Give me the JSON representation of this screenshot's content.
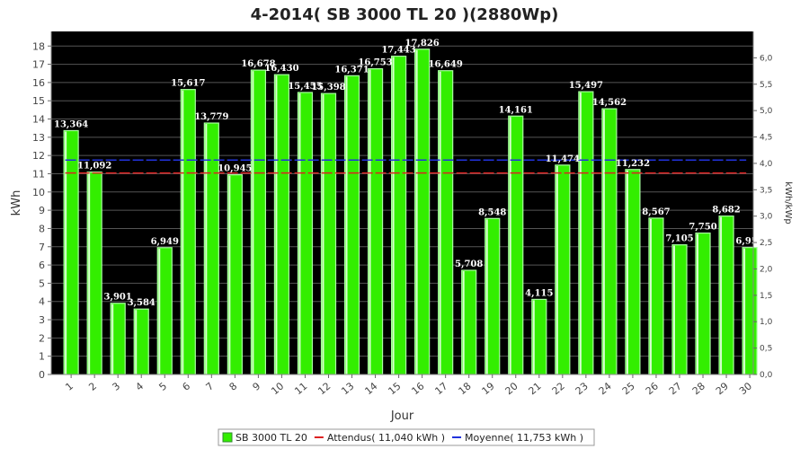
{
  "chart_data": {
    "type": "bar",
    "title": "4-2014( SB 3000 TL 20 )(2880Wp)",
    "xlabel": "Jour",
    "ylabel": "kWh",
    "y2label": "kWh/kWp",
    "ylim": [
      0,
      18.8
    ],
    "y2lim": [
      0,
      6.5
    ],
    "yticks": [
      "0",
      "1",
      "2",
      "3",
      "4",
      "5",
      "6",
      "7",
      "8",
      "9",
      "10",
      "11",
      "12",
      "13",
      "14",
      "15",
      "16",
      "17",
      "18"
    ],
    "y2ticks": [
      "0,0",
      "0,5",
      "1,0",
      "1,5",
      "2,0",
      "2,5",
      "3,0",
      "3,5",
      "4,0",
      "4,5",
      "5,0",
      "5,5",
      "6,0"
    ],
    "categories": [
      "1",
      "2",
      "3",
      "4",
      "5",
      "6",
      "7",
      "8",
      "9",
      "10",
      "11",
      "12",
      "13",
      "14",
      "15",
      "16",
      "17",
      "18",
      "19",
      "20",
      "21",
      "22",
      "23",
      "24",
      "25",
      "26",
      "27",
      "28",
      "29",
      "30"
    ],
    "series": [
      {
        "name": "SB 3000 TL 20",
        "color": "#33ee00",
        "values": [
          13.364,
          11.092,
          3.901,
          3.584,
          6.949,
          15.617,
          13.779,
          10.945,
          16.678,
          16.43,
          15.455,
          15.398,
          16.371,
          16.753,
          17.443,
          17.826,
          16.649,
          5.708,
          8.548,
          14.161,
          4.115,
          11.474,
          15.497,
          14.562,
          11.232,
          8.567,
          7.105,
          7.75,
          8.682,
          6.956
        ]
      }
    ],
    "data_labels": [
      "13,364",
      "11,092",
      "3,901",
      "3,584",
      "6,949",
      "15,617",
      "13,779",
      "10,945",
      "16,678",
      "16,430",
      "15,455",
      "15,398",
      "16,371",
      "16,753",
      "17,443",
      "17,826",
      "16,649",
      "5,708",
      "8,548",
      "14,161",
      "4,115",
      "11,474",
      "15,497",
      "14,562",
      "11,232",
      "8,567",
      "7,105",
      "7,750",
      "8,682",
      "6,956"
    ],
    "reference_lines": [
      {
        "name": "Attendus( 11,040 kWh )",
        "value": 11.04,
        "color": "#dd2222"
      },
      {
        "name": "Moyenne( 11,753 kWh )",
        "value": 11.753,
        "color": "#2233dd"
      }
    ],
    "legend": {
      "placement": "bottom-center",
      "items": [
        {
          "label": "SB 3000 TL 20",
          "color": "#33ee00",
          "kind": "box"
        },
        {
          "label": "Attendus( 11,040 kWh )",
          "color": "#dd2222",
          "kind": "line"
        },
        {
          "label": "Moyenne( 11,753 kWh )",
          "color": "#2233dd",
          "kind": "line"
        }
      ]
    },
    "plot_background": "#000000",
    "grid": true
  }
}
